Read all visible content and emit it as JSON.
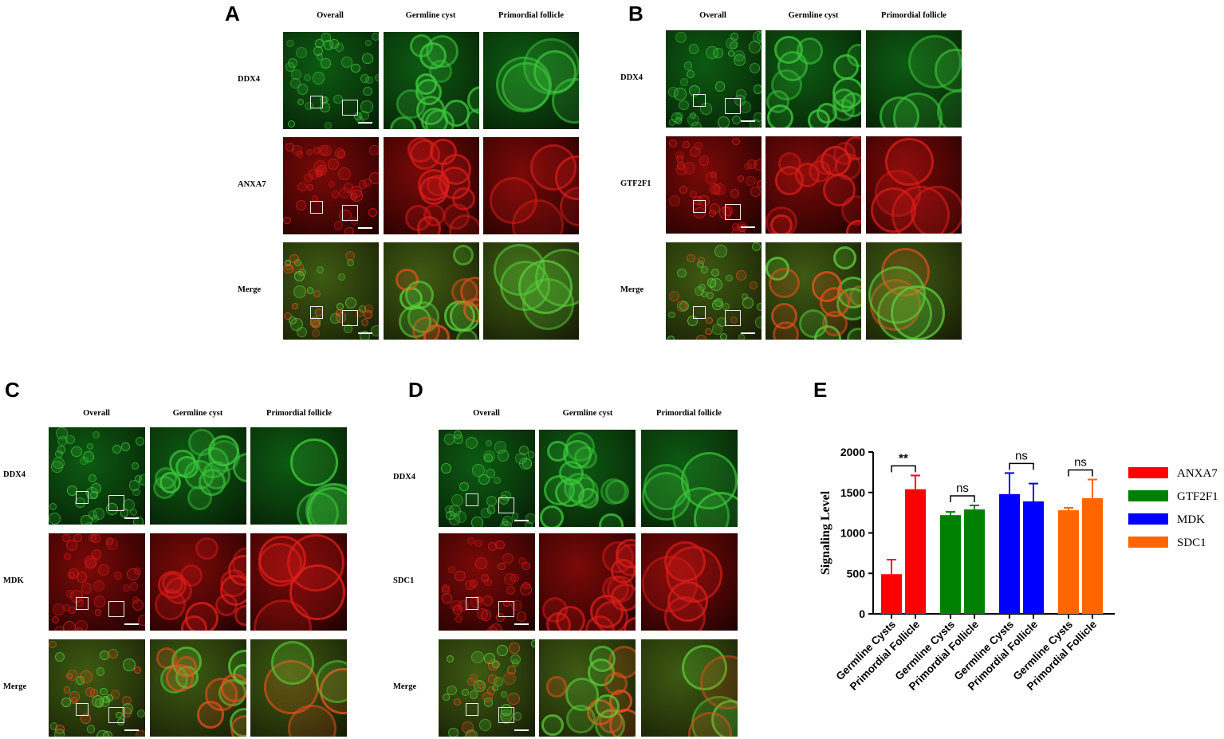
{
  "panels": [
    {
      "id": "A",
      "letter": "A",
      "columns": [
        "Overall",
        "Germline cyst",
        "Primordial follicle"
      ],
      "rows": [
        "DDX4",
        "ANXA7",
        "Merge"
      ]
    },
    {
      "id": "B",
      "letter": "B",
      "columns": [
        "Overall",
        "Germline cyst",
        "Primordial follicle"
      ],
      "rows": [
        "DDX4",
        "GTF2F1",
        "Merge"
      ]
    },
    {
      "id": "C",
      "letter": "C",
      "columns": [
        "Overall",
        "Germline cyst",
        "Primordial follicle"
      ],
      "rows": [
        "DDX4",
        "MDK",
        "Merge"
      ]
    },
    {
      "id": "D",
      "letter": "D",
      "columns": [
        "Overall",
        "Germline cyst",
        "Primordial follicle"
      ],
      "rows": [
        "DDX4",
        "SDC1",
        "Merge"
      ]
    }
  ],
  "chart_letter": "E",
  "chart_data": {
    "type": "bar",
    "ylabel": "Signaling Level",
    "ylim": [
      0,
      2000
    ],
    "yticks": [
      "0",
      "500",
      "1000",
      "1500",
      "2000"
    ],
    "categories": [
      "Germline Cysts",
      "Primordial Follicle",
      "Germline Cysts",
      "Primordial Follicle",
      "Germline Cysts",
      "Primordial Follicle",
      "Germline Cysts",
      "Primordial Follicle"
    ],
    "groups": [
      {
        "name": "ANXA7",
        "color": "#ff0000",
        "values": [
          490,
          1540
        ],
        "errors": [
          180,
          170
        ],
        "significance": "**"
      },
      {
        "name": "GTF2F1",
        "color": "#008000",
        "values": [
          1220,
          1290
        ],
        "errors": [
          40,
          50
        ],
        "significance": "ns"
      },
      {
        "name": "MDK",
        "color": "#0000ff",
        "values": [
          1480,
          1390
        ],
        "errors": [
          260,
          220
        ],
        "significance": "ns"
      },
      {
        "name": "SDC1",
        "color": "#ff6600",
        "values": [
          1280,
          1430
        ],
        "errors": [
          30,
          230
        ],
        "significance": "ns"
      }
    ],
    "legend_position": "right"
  }
}
